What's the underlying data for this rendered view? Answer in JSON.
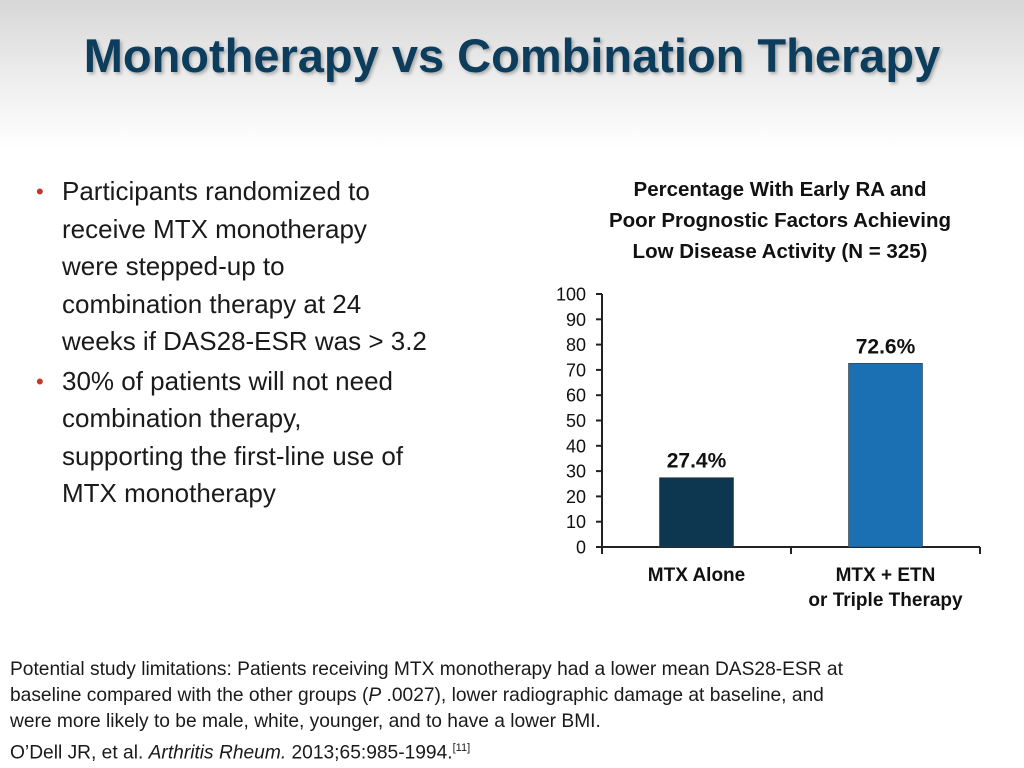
{
  "slide": {
    "title": "Monotherapy vs Combination Therapy",
    "bullets": [
      [
        "Participants randomized to",
        "receive MTX monotherapy",
        "were stepped-up to",
        "combination therapy at 24",
        "weeks if DAS28-ESR was > 3.2"
      ],
      [
        "30% of patients will not need",
        "combination therapy,",
        "supporting the first-line use of",
        "MTX monotherapy"
      ]
    ],
    "bullet_marker": "•",
    "footnote": {
      "limitations": [
        "Potential study limitations: Patients receiving MTX monotherapy had a lower mean DAS28-ESR at",
        "baseline compared with the other groups ("
      ],
      "p_letter": "P",
      "limitations_rest": " .0027), lower radiographic damage at baseline, and",
      "limitations_end": "were more likely to be male, white, younger, and to have a lower BMI.",
      "citation_authors": "O’Dell JR, et al. ",
      "citation_journal": "Arthritis Rheum.",
      "citation_rest": " 2013;65:985-1994.",
      "citation_ref": "[11]"
    }
  },
  "colors": {
    "title": "#0d3d5c",
    "bullet": "#c0392b",
    "bar_dark": "#0d3651",
    "bar_light": "#1a70b3"
  },
  "chart_data": {
    "type": "bar",
    "title_lines": [
      "Percentage With Early RA and",
      "Poor Prognostic Factors Achieving",
      "Low Disease Activity (N = 325)"
    ],
    "categories": [
      [
        "MTX Alone"
      ],
      [
        "MTX + ETN",
        "or Triple Therapy"
      ]
    ],
    "values": [
      27.4,
      72.6
    ],
    "data_labels": [
      "27.4%",
      "72.6%"
    ],
    "bar_colors": [
      "#0d3651",
      "#1a70b3"
    ],
    "ylim": [
      0,
      100
    ],
    "yticks": [
      0,
      10,
      20,
      30,
      40,
      50,
      60,
      70,
      80,
      90,
      100
    ],
    "xlabel": "",
    "ylabel": "",
    "grid": false
  }
}
